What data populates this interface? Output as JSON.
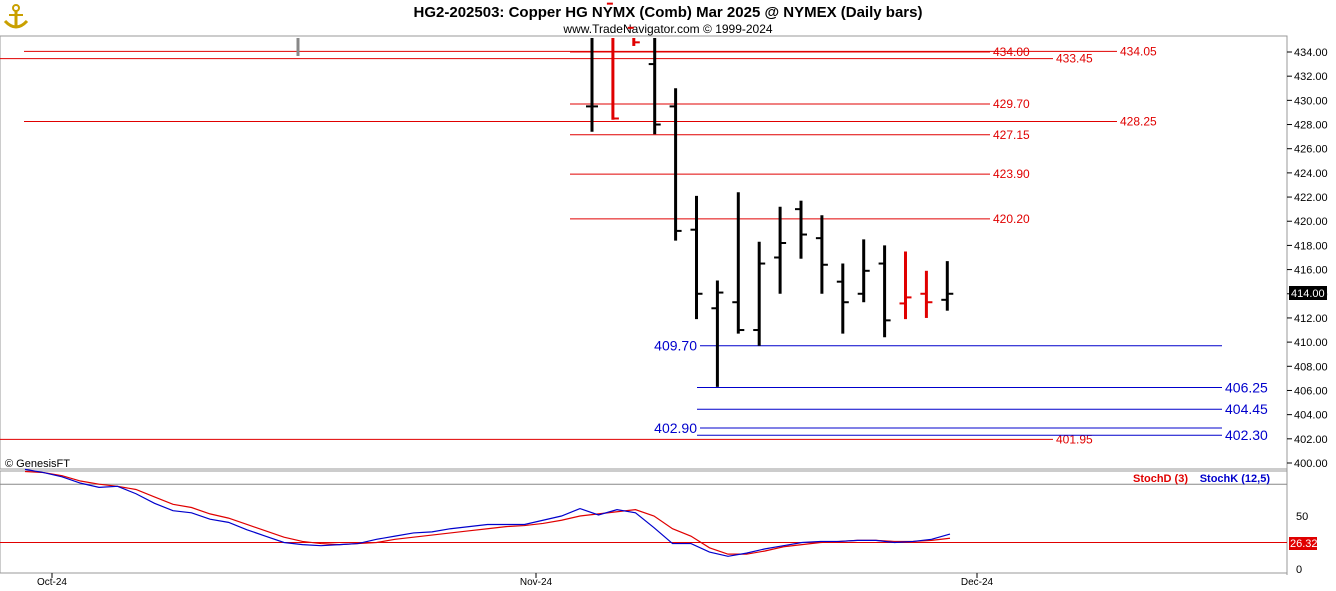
{
  "header": {
    "title": "HG2-202503:  Copper HG NYMX (Comb) Mar 2025 @ NYMEX  (Daily bars)",
    "subtitle": "www.TradeNavigator.com © 1999-2024"
  },
  "watermark": "© GenesisFT",
  "colors": {
    "up": "#000000",
    "down": "#e00000",
    "resistance": "#e00000",
    "support": "#0000cc",
    "stochD": "#e00000",
    "stochK": "#0000cc"
  },
  "icons": {
    "logo": "anchor-icon"
  },
  "chart_data": {
    "type": "ohlc",
    "price_axis": {
      "min": 400,
      "max": 434,
      "ticks": [
        "400.00",
        "402.00",
        "404.00",
        "406.00",
        "408.00",
        "410.00",
        "412.00",
        "414.00",
        "416.00",
        "418.00",
        "420.00",
        "422.00",
        "424.00",
        "426.00",
        "428.00",
        "430.00",
        "432.00",
        "434.00"
      ]
    },
    "last_price_label": "414.00",
    "time_axis_labels": [
      {
        "label": "Oct-24",
        "bar": 0
      },
      {
        "label": "Nov-24",
        "bar": 24
      },
      {
        "label": "Dec-24",
        "bar": 46
      }
    ],
    "bars": [
      {
        "o": 429.5,
        "h": 438,
        "l": 427.4,
        "c": 429.5,
        "color": "up"
      },
      {
        "o": 438,
        "h": 438,
        "l": 428.4,
        "c": 428.5,
        "color": "down"
      },
      {
        "o": 436,
        "h": 436,
        "l": 434.5,
        "c": 434.8,
        "color": "down"
      },
      {
        "o": 433,
        "h": 437,
        "l": 427.2,
        "c": 428,
        "color": "up"
      },
      {
        "o": 429.5,
        "h": 431,
        "l": 418.4,
        "c": 419.2,
        "color": "up"
      },
      {
        "o": 419.3,
        "h": 422.1,
        "l": 411.9,
        "c": 414.0,
        "color": "up"
      },
      {
        "o": 412.8,
        "h": 415.1,
        "l": 406.3,
        "c": 414.1,
        "color": "up"
      },
      {
        "o": 413.3,
        "h": 422.4,
        "l": 410.7,
        "c": 411.0,
        "color": "up"
      },
      {
        "o": 411.0,
        "h": 418.3,
        "l": 409.7,
        "c": 416.5,
        "color": "up"
      },
      {
        "o": 417.0,
        "h": 421.2,
        "l": 414.0,
        "c": 418.2,
        "color": "up"
      },
      {
        "o": 421.0,
        "h": 421.7,
        "l": 416.9,
        "c": 418.9,
        "color": "up"
      },
      {
        "o": 418.6,
        "h": 420.5,
        "l": 414.0,
        "c": 416.4,
        "color": "up"
      },
      {
        "o": 415.0,
        "h": 416.5,
        "l": 410.7,
        "c": 413.3,
        "color": "up"
      },
      {
        "o": 414.0,
        "h": 418.5,
        "l": 413.3,
        "c": 415.9,
        "color": "up"
      },
      {
        "o": 416.5,
        "h": 418.0,
        "l": 410.4,
        "c": 411.8,
        "color": "up"
      },
      {
        "o": 413.2,
        "h": 417.5,
        "l": 411.9,
        "c": 413.7,
        "color": "down"
      },
      {
        "o": 414.0,
        "h": 415.9,
        "l": 412.0,
        "c": 413.3,
        "color": "down"
      },
      {
        "o": 413.5,
        "h": 416.7,
        "l": 412.6,
        "c": 414.0,
        "color": "up"
      }
    ],
    "resistance_levels": [
      "434.05",
      "434.00",
      "433.45",
      "429.70",
      "428.25",
      "427.15",
      "423.90",
      "420.20",
      "401.95"
    ],
    "resistance_values": [
      434.05,
      434.0,
      433.45,
      429.7,
      428.25,
      427.15,
      423.9,
      420.2,
      401.95
    ],
    "support_levels": [
      "409.70",
      "406.25",
      "404.45",
      "402.90",
      "402.30"
    ],
    "support_values": [
      409.7,
      406.25,
      404.45,
      402.9,
      402.3
    ],
    "indicator": {
      "name_d": "StochD (3)",
      "name_k": "StochK (12,5)",
      "ticks": [
        "0",
        "50"
      ],
      "overbought": 80,
      "oversold": 25,
      "value_d_label": "26.32",
      "stochK": [
        94,
        91,
        87,
        81,
        77,
        78,
        71,
        62,
        55,
        53,
        47,
        44,
        37,
        31,
        25,
        23,
        22,
        23,
        24,
        28,
        31,
        34,
        35,
        38,
        40,
        42,
        42,
        42,
        46,
        50,
        57,
        51,
        56,
        53,
        39,
        24,
        24,
        16,
        12,
        15,
        19,
        22,
        25,
        26,
        26,
        27,
        27,
        25,
        26,
        28,
        33
      ],
      "stochD": [
        92,
        91,
        88,
        83,
        80,
        78,
        75,
        68,
        61,
        58,
        52,
        48,
        42,
        36,
        30,
        26,
        24,
        23,
        24,
        25,
        28,
        30,
        32,
        34,
        36,
        38,
        40,
        41,
        43,
        46,
        50,
        52,
        54,
        56,
        50,
        38,
        31,
        20,
        14,
        14,
        17,
        21,
        23,
        25,
        26,
        27,
        27,
        26,
        26,
        27,
        29
      ]
    }
  }
}
